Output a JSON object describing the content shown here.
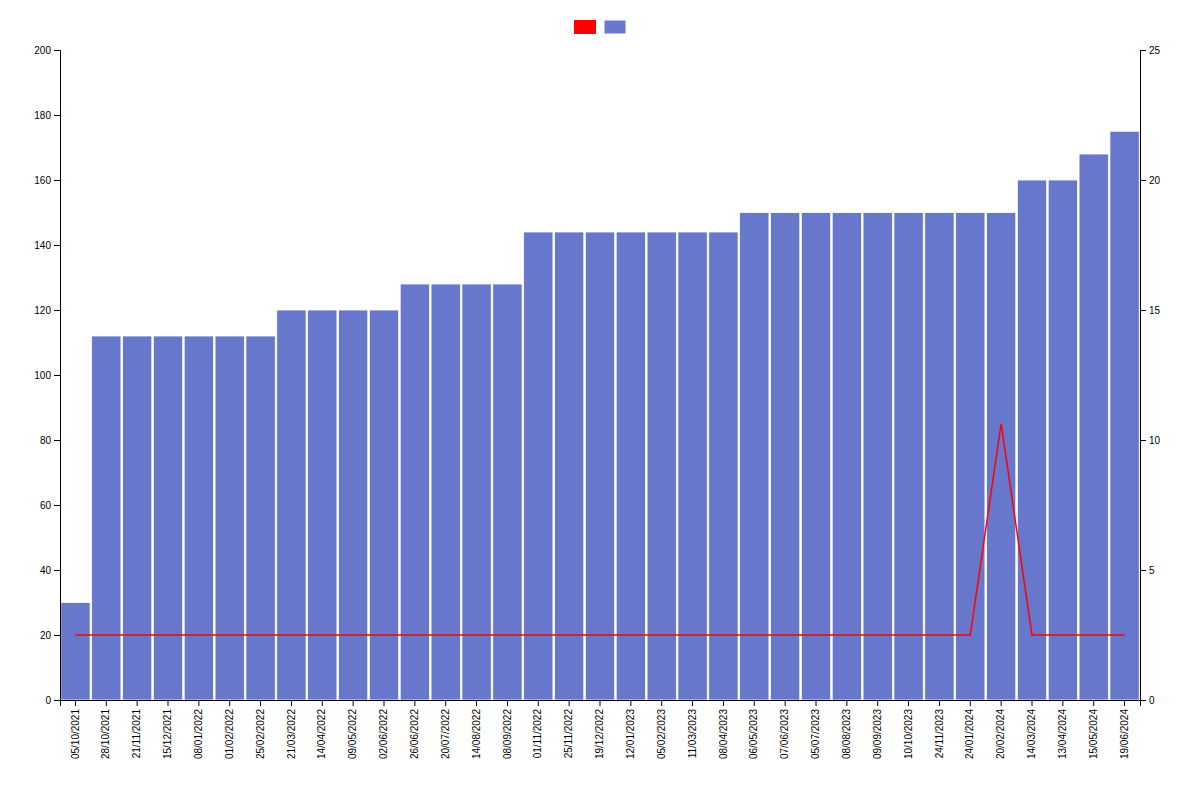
{
  "chart_data": {
    "type": "bar",
    "categories": [
      "05/10/2021",
      "28/10/2021",
      "21/11/2021",
      "15/12/2021",
      "08/01/2022",
      "01/02/2022",
      "25/02/2022",
      "21/03/2022",
      "14/04/2022",
      "09/05/2022",
      "02/06/2022",
      "26/06/2022",
      "20/07/2022",
      "14/08/2022",
      "08/09/2022",
      "01/11/2022",
      "25/11/2022",
      "19/12/2022",
      "12/01/2023",
      "05/02/2023",
      "11/03/2023",
      "08/04/2023",
      "06/05/2023",
      "07/06/2023",
      "05/07/2023",
      "08/08/2023",
      "09/09/2023",
      "10/10/2023",
      "24/11/2023",
      "24/01/2024",
      "20/02/2024",
      "14/03/2024",
      "13/04/2024",
      "15/05/2024",
      "19/06/2024"
    ],
    "series": [
      {
        "type": "line",
        "color": "#ff0000",
        "values": [
          20,
          20,
          20,
          20,
          20,
          20,
          20,
          20,
          20,
          20,
          20,
          20,
          20,
          20,
          20,
          20,
          20,
          20,
          20,
          20,
          20,
          20,
          20,
          20,
          20,
          20,
          20,
          20,
          20,
          20,
          85,
          20,
          20,
          20,
          20
        ]
      },
      {
        "type": "bar",
        "color": "#6677cc",
        "values": [
          30,
          112,
          112,
          112,
          112,
          112,
          112,
          120,
          120,
          120,
          120,
          128,
          128,
          128,
          128,
          144,
          144,
          144,
          144,
          144,
          144,
          144,
          150,
          150,
          150,
          150,
          150,
          150,
          150,
          150,
          150,
          160,
          160,
          168,
          175
        ]
      }
    ],
    "ylim": [
      0,
      200
    ],
    "yticks": [
      0,
      20,
      40,
      60,
      80,
      100,
      120,
      140,
      160,
      180,
      200
    ],
    "y2lim": [
      0,
      25
    ],
    "y2ticks": [
      0,
      5,
      10,
      15,
      20,
      25
    ],
    "grid": false,
    "legend": "top"
  }
}
